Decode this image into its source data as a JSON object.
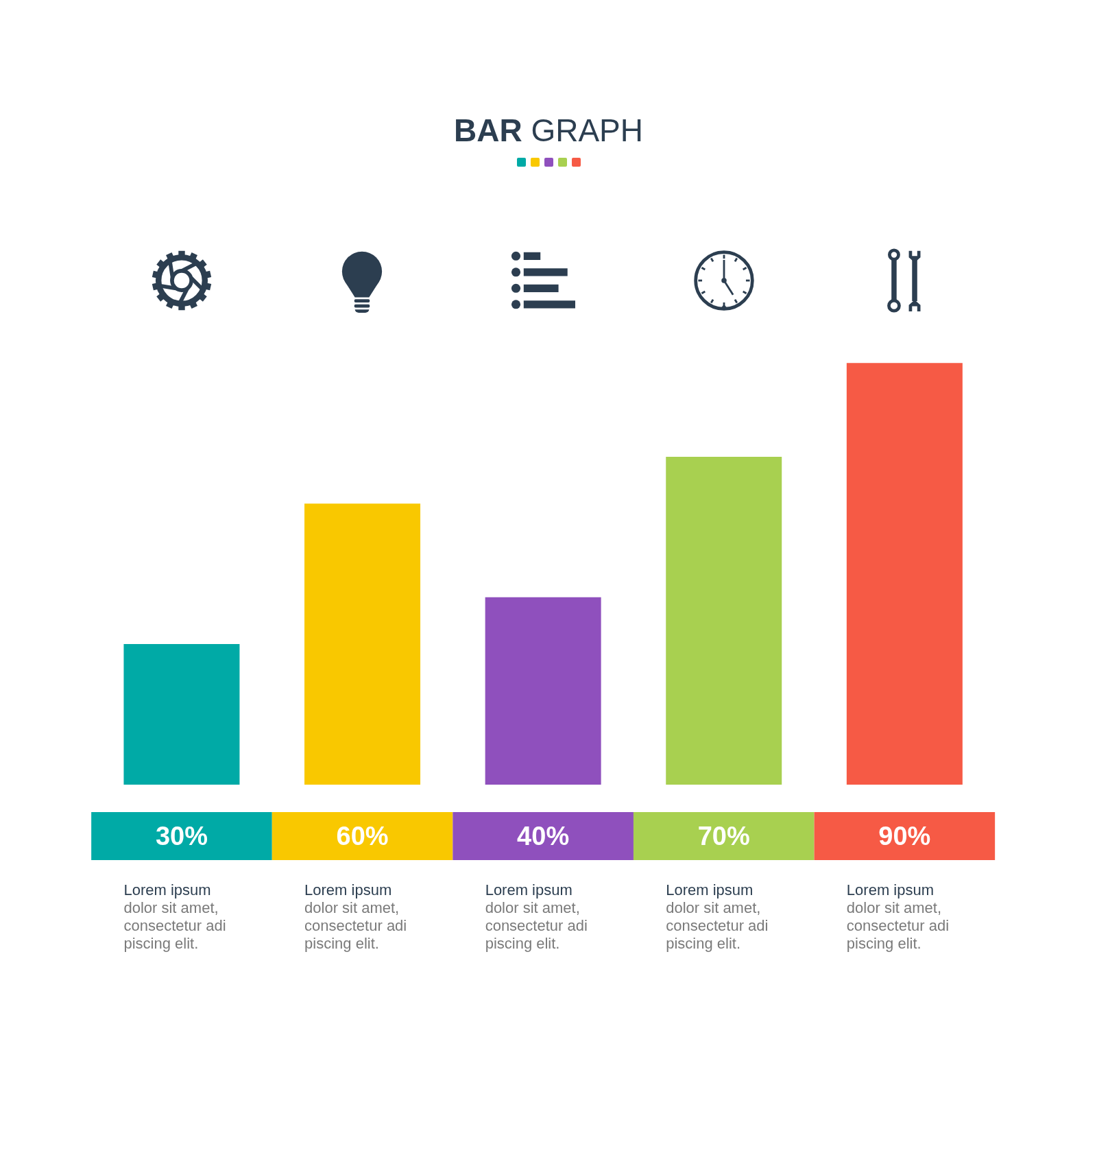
{
  "chart_data": {
    "type": "bar",
    "title": "BAR GRAPH",
    "categories": [
      "Lorem ipsum\ndolor sit amet,\nconsectetur adi\npiscing elit.",
      "Lorem ipsum\ndolor sit amet,\nconsectetur adi\npiscing elit.",
      "Lorem ipsum\ndolor sit amet,\nconsectetur adi\npiscing elit.",
      "Lorem ipsum\ndolor sit amet,\nconsectetur adi\npiscing elit.",
      "Lorem ipsum\ndolor sit amet,\nconsectetur adi\npiscing elit."
    ],
    "values": [
      30,
      60,
      40,
      70,
      90
    ],
    "colors": [
      "#00aaa6",
      "#f9c800",
      "#8f50bd",
      "#a8d050",
      "#f65a45"
    ],
    "value_labels": [
      "30%",
      "60%",
      "40%",
      "70%",
      "90%"
    ],
    "tick_labels": "x"
  }
}
